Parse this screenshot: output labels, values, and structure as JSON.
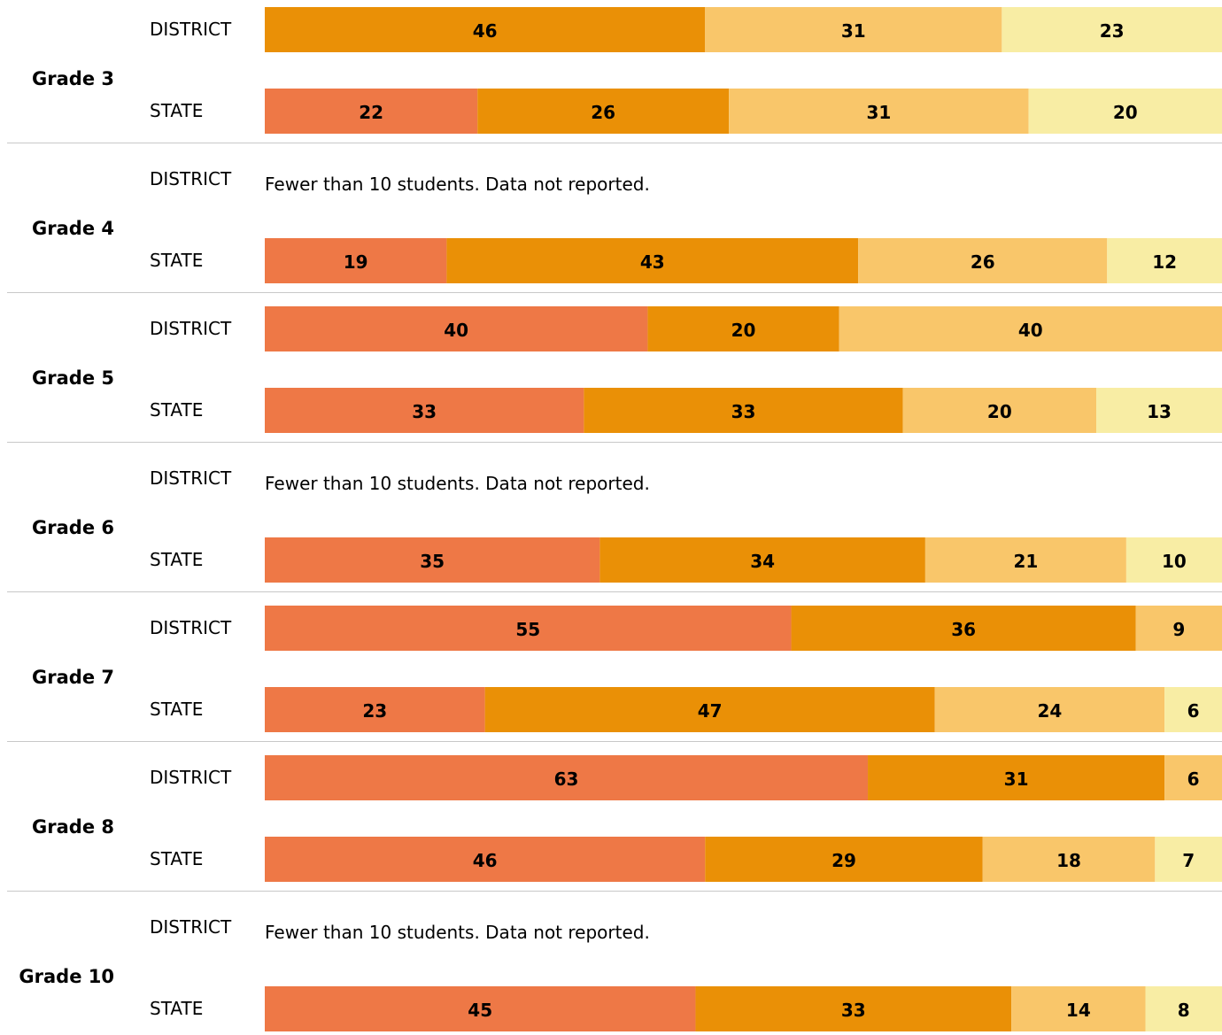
{
  "chart_data": {
    "type": "bar",
    "orientation": "horizontal",
    "stacked": true,
    "segment_colors": [
      "#EE7846",
      "#EA9006",
      "#F9C66A",
      "#F8EDA4"
    ],
    "missing_note": "Fewer than 10 students. Data not reported.",
    "groups": [
      {
        "grade": "Grade 3",
        "rows": [
          {
            "label": "DISTRICT",
            "values": [
              0,
              46,
              31,
              23
            ]
          },
          {
            "label": "STATE",
            "values": [
              22,
              26,
              31,
              20
            ]
          }
        ]
      },
      {
        "grade": "Grade 4",
        "rows": [
          {
            "label": "DISTRICT",
            "values": null
          },
          {
            "label": "STATE",
            "values": [
              19,
              43,
              26,
              12
            ]
          }
        ]
      },
      {
        "grade": "Grade 5",
        "rows": [
          {
            "label": "DISTRICT",
            "values": [
              40,
              20,
              40,
              0
            ]
          },
          {
            "label": "STATE",
            "values": [
              33,
              33,
              20,
              13
            ]
          }
        ]
      },
      {
        "grade": "Grade 6",
        "rows": [
          {
            "label": "DISTRICT",
            "values": null
          },
          {
            "label": "STATE",
            "values": [
              35,
              34,
              21,
              10
            ]
          }
        ]
      },
      {
        "grade": "Grade 7",
        "rows": [
          {
            "label": "DISTRICT",
            "values": [
              55,
              36,
              9,
              0
            ]
          },
          {
            "label": "STATE",
            "values": [
              23,
              47,
              24,
              6
            ]
          }
        ]
      },
      {
        "grade": "Grade 8",
        "rows": [
          {
            "label": "DISTRICT",
            "values": [
              63,
              31,
              6,
              0
            ]
          },
          {
            "label": "STATE",
            "values": [
              46,
              29,
              18,
              7
            ]
          }
        ]
      },
      {
        "grade": "Grade 10",
        "rows": [
          {
            "label": "DISTRICT",
            "values": null
          },
          {
            "label": "STATE",
            "values": [
              45,
              33,
              14,
              8
            ]
          }
        ]
      }
    ]
  }
}
